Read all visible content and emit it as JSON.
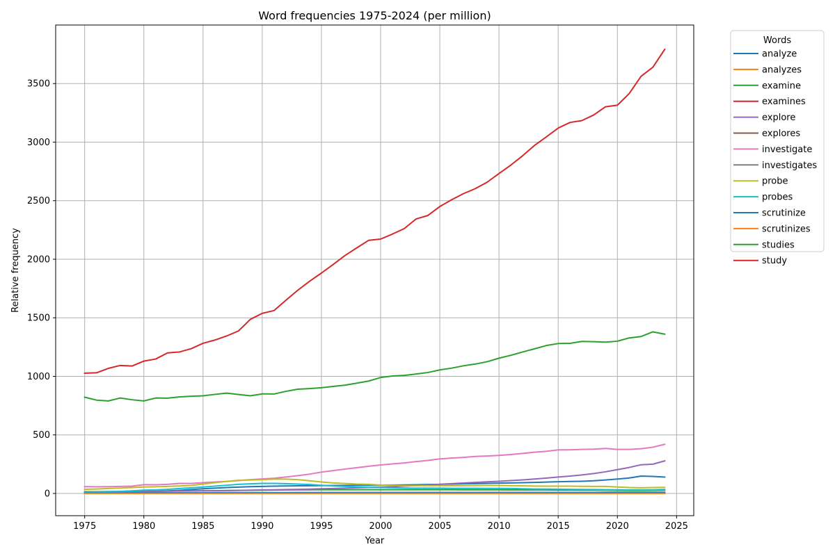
{
  "chart_data": {
    "type": "line",
    "title": "Word frequencies 1975-2024 (per million)",
    "xlabel": "Year",
    "ylabel": "Relative frequency",
    "xlim": [
      1972.55,
      2026.45
    ],
    "ylim": [
      -190,
      4000
    ],
    "xticks": [
      1975,
      1980,
      1985,
      1990,
      1995,
      2000,
      2005,
      2010,
      2015,
      2020,
      2025
    ],
    "yticks": [
      0,
      500,
      1000,
      1500,
      2000,
      2500,
      3000,
      3500
    ],
    "grid": true,
    "legend_title": "Words",
    "legend_position": "outside right",
    "x": [
      1975,
      1976,
      1977,
      1978,
      1979,
      1980,
      1981,
      1982,
      1983,
      1984,
      1985,
      1986,
      1987,
      1988,
      1989,
      1990,
      1991,
      1992,
      1993,
      1994,
      1995,
      1996,
      1997,
      1998,
      1999,
      2000,
      2001,
      2002,
      2003,
      2004,
      2005,
      2006,
      2007,
      2008,
      2009,
      2010,
      2011,
      2012,
      2013,
      2014,
      2015,
      2016,
      2017,
      2018,
      2019,
      2020,
      2021,
      2022,
      2023,
      2024
    ],
    "series": [
      {
        "name": "analyze",
        "color": "#1f77b4",
        "values": [
          5,
          6,
          7,
          9,
          12,
          15,
          18,
          22,
          27,
          33,
          40,
          45,
          50,
          54,
          58,
          60,
          62,
          64,
          65,
          66,
          67,
          68,
          69,
          70,
          70,
          71,
          72,
          73,
          74,
          76,
          78,
          80,
          82,
          84,
          86,
          88,
          90,
          92,
          94,
          97,
          100,
          102,
          104,
          108,
          115,
          123,
          132,
          148,
          145,
          140
        ]
      },
      {
        "name": "analyzes",
        "color": "#ff7f0e",
        "values": [
          1,
          1,
          1,
          1,
          1,
          1,
          1,
          1,
          2,
          2,
          2,
          2,
          2,
          2,
          2,
          2,
          2,
          3,
          3,
          3,
          3,
          3,
          3,
          3,
          3,
          3,
          3,
          3,
          3,
          3,
          3,
          3,
          3,
          3,
          3,
          3,
          3,
          3,
          3,
          3,
          3,
          3,
          3,
          3,
          3,
          3,
          3,
          3,
          3,
          3
        ]
      },
      {
        "name": "examine",
        "color": "#2ca02c",
        "values": [
          15,
          15,
          16,
          16,
          17,
          18,
          19,
          20,
          21,
          22,
          23,
          24,
          25,
          26,
          27,
          28,
          29,
          30,
          31,
          31,
          32,
          32,
          32,
          32,
          32,
          32,
          32,
          32,
          32,
          32,
          32,
          32,
          31,
          31,
          31,
          31,
          30,
          30,
          30,
          30,
          29,
          29,
          28,
          28,
          28,
          27,
          26,
          26,
          27,
          28
        ]
      },
      {
        "name": "examines",
        "color": "#d62728",
        "values": [
          2,
          2,
          2,
          2,
          2,
          3,
          3,
          3,
          3,
          3,
          3,
          3,
          4,
          4,
          4,
          4,
          4,
          4,
          5,
          5,
          5,
          5,
          5,
          5,
          5,
          5,
          5,
          5,
          5,
          5,
          5,
          5,
          5,
          5,
          5,
          5,
          5,
          5,
          5,
          5,
          5,
          5,
          5,
          5,
          5,
          5,
          5,
          5,
          5,
          5
        ]
      },
      {
        "name": "explore",
        "color": "#9467bd",
        "values": [
          12,
          13,
          14,
          15,
          16,
          17,
          18,
          19,
          20,
          21,
          22,
          23,
          24,
          26,
          28,
          30,
          31,
          33,
          35,
          37,
          40,
          42,
          45,
          48,
          51,
          55,
          58,
          62,
          67,
          72,
          78,
          84,
          89,
          94,
          99,
          104,
          110,
          116,
          123,
          131,
          140,
          148,
          158,
          170,
          185,
          203,
          222,
          245,
          250,
          278
        ]
      },
      {
        "name": "explores",
        "color": "#8c564b",
        "values": [
          2,
          2,
          2,
          2,
          3,
          3,
          3,
          3,
          3,
          4,
          4,
          4,
          4,
          5,
          5,
          5,
          5,
          5,
          6,
          6,
          6,
          6,
          6,
          7,
          7,
          7,
          7,
          7,
          8,
          8,
          8,
          8,
          8,
          8,
          9,
          9,
          9,
          9,
          9,
          9,
          9,
          9,
          9,
          9,
          10,
          10,
          10,
          10,
          10,
          10
        ]
      },
      {
        "name": "investigate",
        "color": "#e377c2",
        "values": [
          58,
          57,
          58,
          60,
          62,
          75,
          74,
          78,
          86,
          85,
          92,
          98,
          102,
          110,
          118,
          124,
          130,
          140,
          152,
          165,
          182,
          195,
          208,
          220,
          232,
          243,
          252,
          260,
          272,
          282,
          295,
          302,
          308,
          316,
          320,
          325,
          332,
          342,
          352,
          360,
          372,
          372,
          376,
          378,
          384,
          376,
          376,
          382,
          395,
          420
        ]
      },
      {
        "name": "investigates",
        "color": "#7f7f7f",
        "values": [
          5,
          5,
          5,
          5,
          5,
          6,
          6,
          6,
          6,
          6,
          6,
          7,
          7,
          7,
          7,
          7,
          7,
          7,
          8,
          8,
          8,
          8,
          8,
          8,
          8,
          8,
          8,
          8,
          8,
          8,
          8,
          8,
          8,
          8,
          8,
          8,
          8,
          8,
          8,
          8,
          8,
          8,
          8,
          8,
          8,
          8,
          8,
          8,
          8,
          8
        ]
      },
      {
        "name": "probe",
        "color": "#bcbd22",
        "values": [
          35,
          38,
          42,
          46,
          50,
          55,
          57,
          60,
          64,
          68,
          80,
          92,
          103,
          112,
          115,
          118,
          122,
          122,
          118,
          108,
          98,
          90,
          85,
          80,
          78,
          72,
          70,
          66,
          66,
          66,
          66,
          66,
          66,
          67,
          68,
          68,
          66,
          65,
          63,
          62,
          62,
          62,
          61,
          60,
          60,
          55,
          50,
          48,
          50,
          52
        ]
      },
      {
        "name": "probes",
        "color": "#17becf",
        "values": [
          10,
          12,
          15,
          18,
          22,
          28,
          30,
          35,
          42,
          48,
          55,
          62,
          70,
          78,
          82,
          86,
          86,
          84,
          80,
          76,
          70,
          64,
          60,
          55,
          52,
          50,
          48,
          46,
          45,
          45,
          45,
          44,
          44,
          44,
          43,
          43,
          42,
          40,
          38,
          37,
          36,
          35,
          34,
          33,
          32,
          31,
          30,
          30,
          31,
          34
        ]
      },
      {
        "name": "scrutinize",
        "color": "#1f77b4",
        "values": [
          3,
          3,
          3,
          3,
          3,
          4,
          4,
          4,
          4,
          4,
          4,
          5,
          5,
          5,
          5,
          5,
          5,
          5,
          5,
          5,
          5,
          5,
          5,
          5,
          5,
          5,
          5,
          5,
          5,
          5,
          5,
          5,
          5,
          5,
          5,
          5,
          5,
          5,
          5,
          5,
          5,
          5,
          5,
          5,
          5,
          5,
          5,
          5,
          5,
          5
        ]
      },
      {
        "name": "scrutinizes",
        "color": "#ff7f0e",
        "values": [
          0,
          0,
          0,
          0,
          0,
          0,
          0,
          0,
          0,
          0,
          0,
          0,
          0,
          0,
          0,
          0,
          0,
          0,
          0,
          0,
          0,
          0,
          0,
          0,
          0,
          0,
          0,
          0,
          0,
          0,
          0,
          0,
          0,
          0,
          0,
          0,
          0,
          0,
          0,
          0,
          0,
          0,
          0,
          0,
          0,
          0,
          0,
          0,
          0,
          0
        ]
      },
      {
        "name": "studies",
        "color": "#2ca02c",
        "values": [
          822,
          797,
          790,
          815,
          800,
          790,
          815,
          814,
          824,
          830,
          834,
          846,
          857,
          845,
          834,
          850,
          849,
          872,
          890,
          895,
          903,
          914,
          925,
          942,
          960,
          990,
          1003,
          1008,
          1020,
          1033,
          1055,
          1070,
          1090,
          1105,
          1125,
          1155,
          1180,
          1208,
          1235,
          1263,
          1280,
          1282,
          1298,
          1296,
          1292,
          1300,
          1328,
          1340,
          1380,
          1360
        ]
      },
      {
        "name": "study",
        "color": "#d62728",
        "values": [
          1027,
          1030,
          1068,
          1093,
          1088,
          1130,
          1148,
          1200,
          1208,
          1236,
          1282,
          1310,
          1345,
          1388,
          1487,
          1538,
          1562,
          1650,
          1735,
          1812,
          1882,
          1956,
          2032,
          2098,
          2162,
          2172,
          2215,
          2262,
          2344,
          2374,
          2450,
          2508,
          2560,
          2603,
          2658,
          2732,
          2804,
          2884,
          2972,
          3045,
          3120,
          3168,
          3184,
          3232,
          3302,
          3315,
          3415,
          3562,
          3640,
          3792
        ]
      }
    ]
  }
}
